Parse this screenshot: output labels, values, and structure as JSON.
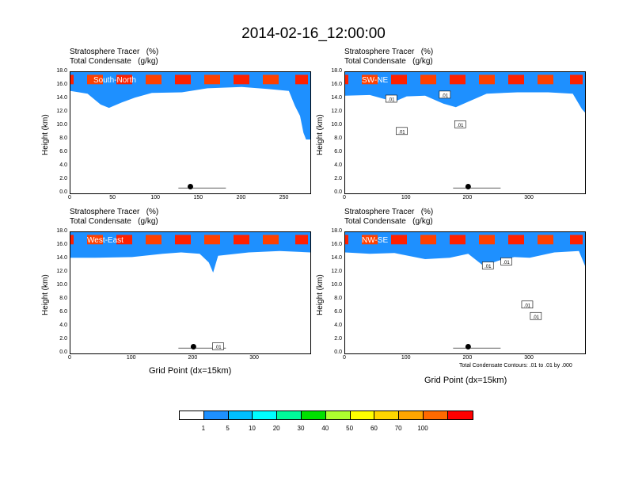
{
  "figure": {
    "title": "2014-02-16_12:00:00",
    "panel_title_line1": "Stratosphere Tracer   (%)",
    "panel_title_line2": "Total Condensate   (g/kg)",
    "ylabel": "Height (km)",
    "xlabel": "Grid Point (dx=15km)",
    "contour_note": "Total Condensate Contours: .01 to .01 by .000"
  },
  "colorbar": {
    "colors": [
      "#ffffff",
      "#1e90ff",
      "#00bfff",
      "#00ffff",
      "#00fa9a",
      "#00e000",
      "#adff2f",
      "#ffff00",
      "#ffd700",
      "#ffa500",
      "#ff6a00",
      "#ff0000"
    ],
    "labels": [
      "1",
      "5",
      "10",
      "20",
      "30",
      "40",
      "50",
      "60",
      "70",
      "100"
    ]
  },
  "chart_data": [
    {
      "type": "heatmap",
      "label": "South-North",
      "ylim": [
        0,
        18
      ],
      "yticks": [
        "0.0",
        "2.0",
        "4.0",
        "6.0",
        "8.0",
        "10.0",
        "12.0",
        "14.0",
        "16.0",
        "18.0"
      ],
      "xlim": [
        0,
        280
      ],
      "xticks": [
        0,
        50,
        100,
        150,
        200,
        250
      ],
      "marker": {
        "x": 140,
        "y": 1.0
      },
      "tropopause": [
        [
          0,
          15.2
        ],
        [
          20,
          14.8
        ],
        [
          35,
          13.2
        ],
        [
          45,
          12.7
        ],
        [
          60,
          13.5
        ],
        [
          75,
          14.2
        ],
        [
          95,
          14.9
        ],
        [
          130,
          15.0
        ],
        [
          160,
          15.6
        ],
        [
          200,
          15.8
        ],
        [
          230,
          15.5
        ],
        [
          255,
          15.2
        ],
        [
          262,
          13.0
        ],
        [
          268,
          11.5
        ],
        [
          272,
          9.0
        ],
        [
          275,
          8.0
        ],
        [
          280,
          8.0
        ]
      ]
    },
    {
      "type": "heatmap",
      "label": "SW-NE",
      "ylim": [
        0,
        18
      ],
      "yticks": [
        "0.0",
        "2.0",
        "4.0",
        "6.0",
        "8.0",
        "10.0",
        "12.0",
        "14.0",
        "16.0",
        "18.0"
      ],
      "xlim": [
        0,
        390
      ],
      "xticks": [
        0,
        100,
        200,
        300
      ],
      "marker": {
        "x": 200,
        "y": 1.0
      },
      "contour_labels": [
        {
          "x": 75,
          "y": 14.0,
          "text": ".01"
        },
        {
          "x": 162,
          "y": 14.6,
          "text": ".01"
        },
        {
          "x": 92,
          "y": 9.2,
          "text": ".01"
        },
        {
          "x": 187,
          "y": 10.2,
          "text": ".01"
        }
      ],
      "tropopause": [
        [
          0,
          14.5
        ],
        [
          40,
          14.6
        ],
        [
          80,
          13.6
        ],
        [
          100,
          14.4
        ],
        [
          130,
          14.5
        ],
        [
          160,
          13.3
        ],
        [
          180,
          12.8
        ],
        [
          200,
          13.6
        ],
        [
          230,
          14.8
        ],
        [
          280,
          15.0
        ],
        [
          330,
          15.0
        ],
        [
          370,
          14.8
        ],
        [
          385,
          12.5
        ],
        [
          390,
          12.0
        ]
      ]
    },
    {
      "type": "heatmap",
      "label": "West-East",
      "ylim": [
        0,
        18
      ],
      "yticks": [
        "0.0",
        "2.0",
        "4.0",
        "6.0",
        "8.0",
        "10.0",
        "12.0",
        "14.0",
        "16.0",
        "18.0"
      ],
      "xlim": [
        0,
        390
      ],
      "xticks": [
        0,
        100,
        200,
        300
      ],
      "marker": {
        "x": 200,
        "y": 1.0
      },
      "contour_labels": [
        {
          "x": 240,
          "y": 1.0,
          "text": ".01"
        }
      ],
      "tropopause": [
        [
          0,
          14.2
        ],
        [
          40,
          14.2
        ],
        [
          100,
          14.3
        ],
        [
          150,
          14.8
        ],
        [
          180,
          15.0
        ],
        [
          210,
          14.8
        ],
        [
          225,
          13.5
        ],
        [
          232,
          12.0
        ],
        [
          240,
          14.5
        ],
        [
          290,
          15.0
        ],
        [
          340,
          15.2
        ],
        [
          390,
          15.0
        ]
      ]
    },
    {
      "type": "heatmap",
      "label": "NW-SE",
      "ylim": [
        0,
        18
      ],
      "yticks": [
        "0.0",
        "2.0",
        "4.0",
        "6.0",
        "8.0",
        "10.0",
        "12.0",
        "14.0",
        "16.0",
        "18.0"
      ],
      "xlim": [
        0,
        390
      ],
      "xticks": [
        0,
        100,
        200,
        300
      ],
      "marker": {
        "x": 200,
        "y": 1.0
      },
      "contour_labels": [
        {
          "x": 232,
          "y": 13.0,
          "text": ".01"
        },
        {
          "x": 262,
          "y": 13.6,
          "text": ".01"
        },
        {
          "x": 296,
          "y": 7.2,
          "text": ".01"
        },
        {
          "x": 310,
          "y": 5.5,
          "text": ".01"
        }
      ],
      "tropopause": [
        [
          0,
          15.0
        ],
        [
          40,
          14.8
        ],
        [
          80,
          14.9
        ],
        [
          130,
          14.0
        ],
        [
          170,
          14.2
        ],
        [
          200,
          14.8
        ],
        [
          225,
          13.0
        ],
        [
          250,
          13.8
        ],
        [
          275,
          14.3
        ],
        [
          300,
          14.2
        ],
        [
          340,
          15.0
        ],
        [
          380,
          15.2
        ],
        [
          390,
          13.0
        ]
      ]
    }
  ]
}
